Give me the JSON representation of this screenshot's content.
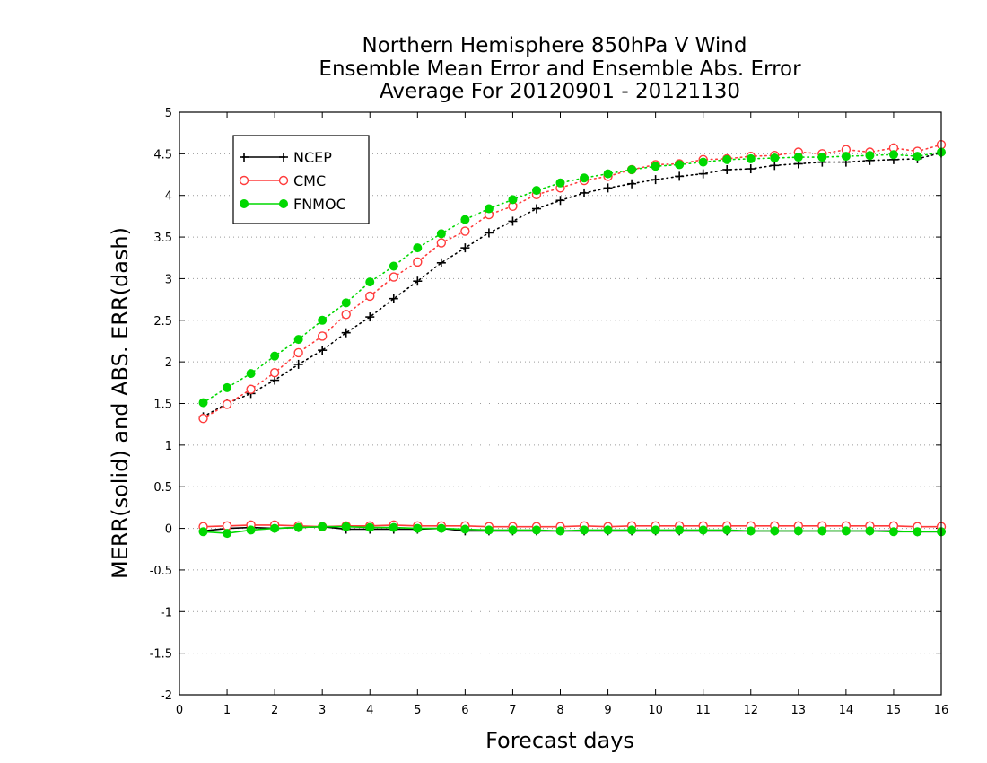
{
  "chart_data": {
    "type": "line",
    "title_lines": [
      "Northern Hemisphere 850hPa V Wind",
      "Ensemble Mean Error and Ensemble Abs. Error",
      "Average For 20120901 - 20121130"
    ],
    "xlabel": "Forecast days",
    "ylabel": "MERR(solid) and ABS. ERR(dash)",
    "xlim": [
      0,
      16
    ],
    "ylim": [
      -2,
      5
    ],
    "xticks": [
      "0",
      "1",
      "2",
      "3",
      "4",
      "5",
      "6",
      "7",
      "8",
      "9",
      "10",
      "11",
      "12",
      "13",
      "14",
      "15",
      "16"
    ],
    "yticks": [
      "5",
      "4.5",
      "4",
      "3.5",
      "3",
      "2.5",
      "2",
      "1.5",
      "1",
      "0.5",
      "0",
      "-0.5",
      "-1",
      "-1.5",
      "-2"
    ],
    "grid": "horizontal dotted",
    "legend_position": "top-left",
    "x": [
      0.5,
      1,
      1.5,
      2,
      2.5,
      3,
      3.5,
      4,
      4.5,
      5,
      5.5,
      6,
      6.5,
      7,
      7.5,
      8,
      8.5,
      9,
      9.5,
      10,
      10.5,
      11,
      11.5,
      12,
      12.5,
      13,
      13.5,
      14,
      14.5,
      15,
      15.5,
      16
    ],
    "series": [
      {
        "name": "NCEP",
        "color": "#000000",
        "marker": "plus",
        "abs_err": [
          1.34,
          1.5,
          1.62,
          1.78,
          1.97,
          2.14,
          2.35,
          2.54,
          2.76,
          2.97,
          3.19,
          3.37,
          3.55,
          3.69,
          3.84,
          3.94,
          4.03,
          4.09,
          4.14,
          4.19,
          4.23,
          4.26,
          4.31,
          4.32,
          4.36,
          4.38,
          4.4,
          4.4,
          4.42,
          4.43,
          4.44,
          4.51
        ],
        "mean_err": [
          -0.03,
          0.0,
          0.01,
          0.0,
          0.01,
          0.02,
          -0.01,
          -0.01,
          -0.01,
          -0.01,
          0.0,
          -0.03,
          -0.03,
          -0.03,
          -0.03,
          -0.03,
          -0.03,
          -0.03,
          -0.03,
          -0.03,
          -0.03,
          -0.03,
          -0.03,
          -0.03,
          -0.03,
          -0.03,
          -0.03,
          -0.03,
          -0.03,
          -0.03,
          -0.04,
          -0.04
        ]
      },
      {
        "name": "CMC",
        "color": "#ff3b3b",
        "marker": "open-circle",
        "abs_err": [
          1.32,
          1.49,
          1.67,
          1.87,
          2.11,
          2.31,
          2.57,
          2.79,
          3.02,
          3.2,
          3.43,
          3.57,
          3.77,
          3.87,
          4.01,
          4.09,
          4.18,
          4.23,
          4.31,
          4.37,
          4.38,
          4.43,
          4.44,
          4.47,
          4.48,
          4.52,
          4.5,
          4.55,
          4.52,
          4.57,
          4.53,
          4.61
        ],
        "mean_err": [
          0.02,
          0.03,
          0.04,
          0.04,
          0.03,
          0.02,
          0.03,
          0.03,
          0.04,
          0.03,
          0.03,
          0.03,
          0.02,
          0.02,
          0.02,
          0.02,
          0.03,
          0.02,
          0.03,
          0.03,
          0.03,
          0.03,
          0.03,
          0.03,
          0.03,
          0.03,
          0.03,
          0.03,
          0.03,
          0.03,
          0.02,
          0.02
        ]
      },
      {
        "name": "FNMOC",
        "color": "#00d800",
        "marker": "filled-circle",
        "abs_err": [
          1.51,
          1.69,
          1.86,
          2.07,
          2.27,
          2.5,
          2.71,
          2.96,
          3.15,
          3.37,
          3.54,
          3.71,
          3.84,
          3.95,
          4.06,
          4.15,
          4.21,
          4.26,
          4.31,
          4.35,
          4.37,
          4.4,
          4.43,
          4.44,
          4.45,
          4.46,
          4.46,
          4.47,
          4.48,
          4.49,
          4.47,
          4.52
        ],
        "mean_err": [
          -0.04,
          -0.06,
          -0.02,
          0.0,
          0.01,
          0.02,
          0.02,
          0.01,
          0.01,
          0.0,
          0.0,
          -0.01,
          -0.02,
          -0.02,
          -0.02,
          -0.03,
          -0.02,
          -0.02,
          -0.02,
          -0.02,
          -0.02,
          -0.02,
          -0.02,
          -0.03,
          -0.03,
          -0.03,
          -0.03,
          -0.03,
          -0.03,
          -0.04,
          -0.04,
          -0.04
        ]
      }
    ]
  }
}
